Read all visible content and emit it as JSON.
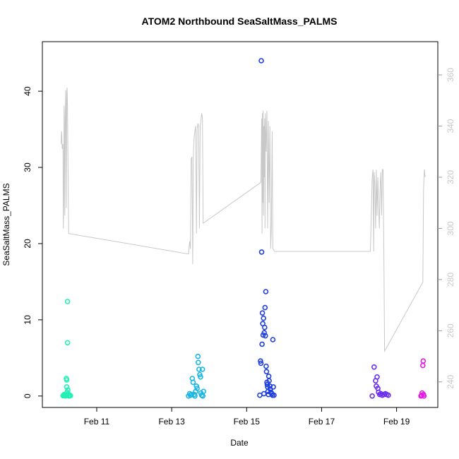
{
  "chart_data": {
    "type": "scatter",
    "title": "ATOM2 Northbound SeaSaltMass_PALMS",
    "xlabel": "Date",
    "ylabel": "SeaSaltMass_PALMS",
    "x_ticks": [
      "Feb 11",
      "Feb 13",
      "Feb 15",
      "Feb 17",
      "Feb 19"
    ],
    "x_tick_values": [
      11,
      13,
      15,
      17,
      19
    ],
    "xlim": [
      9.55,
      20.1
    ],
    "ylim": [
      -1.5,
      46.5
    ],
    "y_ticks": [
      0,
      10,
      20,
      30,
      40
    ],
    "y2lim": [
      230,
      373
    ],
    "y2_ticks": [
      240,
      260,
      280,
      300,
      320,
      340,
      360
    ],
    "grid": false,
    "series": [
      {
        "color": "#22f0b5",
        "points": [
          [
            10.1,
            0.05
          ],
          [
            10.12,
            0.1
          ],
          [
            10.13,
            0.2
          ],
          [
            10.15,
            0.1
          ],
          [
            10.16,
            0.0
          ],
          [
            10.18,
            0.1
          ],
          [
            10.19,
            2.3
          ],
          [
            10.2,
            2.1
          ],
          [
            10.2,
            1.2
          ],
          [
            10.21,
            0.5
          ],
          [
            10.22,
            12.4
          ],
          [
            10.22,
            7.0
          ],
          [
            10.23,
            0.8
          ],
          [
            10.24,
            0.3
          ],
          [
            10.25,
            0.1
          ],
          [
            10.26,
            0.0
          ],
          [
            10.28,
            0.1
          ],
          [
            10.3,
            0.05
          ]
        ]
      },
      {
        "color": "#19b6e6",
        "points": [
          [
            13.45,
            0.0
          ],
          [
            13.48,
            0.3
          ],
          [
            13.5,
            0.1
          ],
          [
            13.53,
            0.2
          ],
          [
            13.55,
            2.3
          ],
          [
            13.57,
            1.8
          ],
          [
            13.6,
            0.2
          ],
          [
            13.62,
            0.0
          ],
          [
            13.64,
            0.6
          ],
          [
            13.66,
            1.3
          ],
          [
            13.68,
            1.0
          ],
          [
            13.7,
            5.2
          ],
          [
            13.71,
            4.4
          ],
          [
            13.73,
            3.5
          ],
          [
            13.75,
            2.8
          ],
          [
            13.77,
            2.5
          ],
          [
            13.78,
            0.4
          ],
          [
            13.8,
            0.1
          ],
          [
            13.82,
            3.5
          ],
          [
            13.83,
            0.0
          ],
          [
            13.85,
            0.6
          ]
        ]
      },
      {
        "color": "#1f3fe0",
        "points": [
          [
            15.35,
            0.1
          ],
          [
            15.37,
            4.6
          ],
          [
            15.38,
            4.3
          ],
          [
            15.39,
            44.0
          ],
          [
            15.4,
            18.9
          ],
          [
            15.41,
            6.8
          ],
          [
            15.42,
            10.9
          ],
          [
            15.43,
            9.5
          ],
          [
            15.44,
            8.0
          ],
          [
            15.45,
            10.2
          ],
          [
            15.46,
            0.3
          ],
          [
            15.47,
            8.3
          ],
          [
            15.48,
            9.0
          ],
          [
            15.49,
            11.6
          ],
          [
            15.5,
            7.9
          ],
          [
            15.51,
            13.7
          ],
          [
            15.52,
            3.9
          ],
          [
            15.53,
            3.2
          ],
          [
            15.54,
            1.8
          ],
          [
            15.55,
            1.5
          ],
          [
            15.56,
            1.2
          ],
          [
            15.57,
            0.6
          ],
          [
            15.58,
            0.2
          ],
          [
            15.59,
            2.6
          ],
          [
            15.6,
            2.0
          ],
          [
            15.62,
            1.3
          ],
          [
            15.63,
            0.9
          ],
          [
            15.65,
            0.5
          ],
          [
            15.67,
            0.3
          ],
          [
            15.69,
            0.1
          ],
          [
            15.7,
            7.4
          ],
          [
            15.71,
            1.2
          ],
          [
            15.73,
            0.1
          ]
        ]
      },
      {
        "color": "#6a2ef0",
        "points": [
          [
            18.35,
            0.0
          ],
          [
            18.4,
            3.8
          ],
          [
            18.44,
            2.0
          ],
          [
            18.46,
            1.3
          ],
          [
            18.48,
            2.5
          ],
          [
            18.5,
            1.0
          ],
          [
            18.52,
            0.5
          ],
          [
            18.55,
            0.2
          ],
          [
            18.58,
            0.3
          ],
          [
            18.62,
            0.1
          ],
          [
            18.66,
            0.2
          ],
          [
            18.7,
            0.3
          ],
          [
            18.74,
            0.2
          ],
          [
            18.78,
            0.1
          ]
        ]
      },
      {
        "color": "#e51be6",
        "points": [
          [
            19.65,
            0.0
          ],
          [
            19.67,
            0.1
          ],
          [
            19.68,
            0.4
          ],
          [
            19.7,
            4.0
          ],
          [
            19.71,
            4.6
          ],
          [
            19.72,
            0.2
          ],
          [
            19.73,
            0.0
          ]
        ]
      }
    ],
    "secondary_line": {
      "color": "#c8c8c8",
      "points": [
        [
          10.05,
          333
        ],
        [
          10.06,
          338
        ],
        [
          10.07,
          336
        ],
        [
          10.08,
          331
        ],
        [
          10.1,
          333
        ],
        [
          10.11,
          300
        ],
        [
          10.12,
          312
        ],
        [
          10.13,
          348
        ],
        [
          10.14,
          343
        ],
        [
          10.15,
          305
        ],
        [
          10.16,
          338
        ],
        [
          10.17,
          354
        ],
        [
          10.18,
          348
        ],
        [
          10.19,
          308
        ],
        [
          10.2,
          353
        ],
        [
          10.21,
          355
        ],
        [
          10.22,
          348
        ],
        [
          10.25,
          298
        ],
        [
          13.45,
          290
        ],
        [
          13.48,
          295
        ],
        [
          13.5,
          292
        ],
        [
          13.52,
          327
        ],
        [
          13.54,
          328
        ],
        [
          13.56,
          286
        ],
        [
          13.58,
          330
        ],
        [
          13.6,
          336
        ],
        [
          13.62,
          338
        ],
        [
          13.64,
          340
        ],
        [
          13.66,
          298
        ],
        [
          13.68,
          339
        ],
        [
          13.7,
          341
        ],
        [
          13.72,
          340
        ],
        [
          13.74,
          300
        ],
        [
          13.76,
          340
        ],
        [
          13.78,
          342
        ],
        [
          13.8,
          345
        ],
        [
          13.82,
          343
        ],
        [
          13.84,
          302
        ],
        [
          15.38,
          318
        ],
        [
          15.39,
          330
        ],
        [
          15.4,
          343
        ],
        [
          15.41,
          298
        ],
        [
          15.42,
          345
        ],
        [
          15.43,
          310
        ],
        [
          15.44,
          346
        ],
        [
          15.45,
          305
        ],
        [
          15.46,
          340
        ],
        [
          15.47,
          320
        ],
        [
          15.48,
          343
        ],
        [
          15.49,
          300
        ],
        [
          15.5,
          345
        ],
        [
          15.52,
          330
        ],
        [
          15.54,
          346
        ],
        [
          15.56,
          300
        ],
        [
          15.58,
          342
        ],
        [
          15.6,
          310
        ],
        [
          15.62,
          340
        ],
        [
          15.64,
          292
        ],
        [
          15.66,
          300
        ],
        [
          15.68,
          338
        ],
        [
          15.7,
          292
        ],
        [
          15.75,
          291
        ],
        [
          18.3,
          291
        ],
        [
          18.35,
          320
        ],
        [
          18.37,
          323
        ],
        [
          18.39,
          291
        ],
        [
          18.4,
          322
        ],
        [
          18.42,
          318
        ],
        [
          18.44,
          300
        ],
        [
          18.46,
          323
        ],
        [
          18.48,
          305
        ],
        [
          18.5,
          320
        ],
        [
          18.52,
          310
        ],
        [
          18.54,
          300
        ],
        [
          18.56,
          316
        ],
        [
          18.58,
          322
        ],
        [
          18.6,
          305
        ],
        [
          18.62,
          323
        ],
        [
          18.64,
          323
        ],
        [
          18.66,
          290
        ],
        [
          18.68,
          252
        ],
        [
          19.7,
          279
        ],
        [
          19.72,
          315
        ],
        [
          19.74,
          323
        ],
        [
          19.76,
          320
        ]
      ]
    }
  }
}
